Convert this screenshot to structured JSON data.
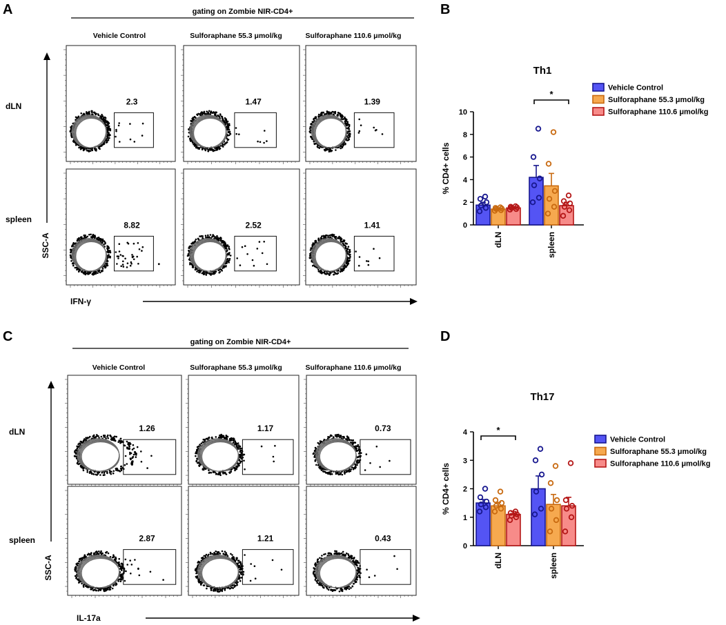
{
  "panels": {
    "A": {
      "letter": "A",
      "gating_label": "gating on Zombie NIR-CD4+",
      "columns": [
        "Vehicle Control",
        "Sulforaphane 55.3 μmol/kg",
        "Sulforaphane 110.6 μmol/kg"
      ],
      "rows": [
        "dLN",
        "spleen"
      ],
      "y_axis_label": "SSC-A",
      "x_axis_label": "IFN-γ",
      "gate_values": [
        [
          "2.3",
          "1.47",
          "1.39"
        ],
        [
          "8.82",
          "2.52",
          "1.41"
        ]
      ]
    },
    "C": {
      "letter": "C",
      "gating_label": "gating on Zombie NIR-CD4+",
      "columns": [
        "Vehicle Control",
        "Sulforaphane 55.3 μmol/kg",
        "Sulforaphane 110.6 μmol/kg"
      ],
      "rows": [
        "dLN",
        "spleen"
      ],
      "y_axis_label": "SSC-A",
      "x_axis_label": "IL-17a",
      "gate_values": [
        [
          "1.26",
          "1.17",
          "0.73"
        ],
        [
          "2.87",
          "1.21",
          "0.43"
        ]
      ]
    },
    "B": {
      "letter": "B"
    },
    "D": {
      "letter": "D"
    }
  },
  "colors": {
    "series_fill": [
      "#5454f4",
      "#f6a94f",
      "#f78b89"
    ],
    "series_stroke": [
      "#17178f",
      "#c8690f",
      "#b41616"
    ],
    "axis": "#000000",
    "contour": "#6b6b6b"
  },
  "chart_data": [
    {
      "panel": "B",
      "type": "bar",
      "title": "Th1",
      "ylabel": "% CD4+ cells",
      "xlabel": "",
      "ylim": [
        0,
        10
      ],
      "yticks": [
        "0",
        "2",
        "4",
        "6",
        "8",
        "10"
      ],
      "categories": [
        "dLN",
        "spleen"
      ],
      "legend_position": "top-right",
      "series": [
        {
          "name": "Vehicle Control",
          "values": [
            1.75,
            4.2
          ],
          "errors": [
            0.25,
            1.05
          ],
          "points": [
            [
              1.2,
              1.5,
              1.7,
              2.0,
              2.3,
              2.5
            ],
            [
              2.0,
              2.4,
              3.5,
              4.1,
              6.0,
              8.5
            ]
          ]
        },
        {
          "name": "Sulforaphane 55.3 μmol/kg",
          "values": [
            1.4,
            3.45
          ],
          "errors": [
            0.1,
            1.1
          ],
          "points": [
            [
              1.25,
              1.3,
              1.4,
              1.45,
              1.5,
              1.55
            ],
            [
              1.0,
              1.6,
              2.3,
              3.0,
              5.4,
              8.2
            ]
          ]
        },
        {
          "name": "Sulforaphane 110.6 μmol/kg",
          "values": [
            1.5,
            1.7
          ],
          "errors": [
            0.1,
            0.3
          ],
          "points": [
            [
              1.35,
              1.4,
              1.5,
              1.55,
              1.6,
              1.65
            ],
            [
              0.8,
              1.3,
              1.6,
              1.9,
              2.1,
              2.6
            ]
          ]
        }
      ],
      "significance": [
        {
          "category": "spleen",
          "from_series": 0,
          "to_series": 2,
          "label": "*"
        }
      ]
    },
    {
      "panel": "D",
      "type": "bar",
      "title": "Th17",
      "ylabel": "% CD4+ cells",
      "xlabel": "",
      "ylim": [
        0,
        4
      ],
      "yticks": [
        "0",
        "1",
        "2",
        "3",
        "4"
      ],
      "categories": [
        "dLN",
        "spleen"
      ],
      "legend_position": "right",
      "series": [
        {
          "name": "Vehicle Control",
          "values": [
            1.5,
            2.0
          ],
          "errors": [
            0.12,
            0.45
          ],
          "points": [
            [
              1.2,
              1.35,
              1.45,
              1.55,
              1.7,
              2.0
            ],
            [
              1.1,
              1.3,
              1.9,
              2.5,
              3.0,
              3.4
            ]
          ]
        },
        {
          "name": "Sulforaphane 55.3 μmol/kg",
          "values": [
            1.4,
            1.45
          ],
          "errors": [
            0.12,
            0.35
          ],
          "points": [
            [
              1.2,
              1.3,
              1.4,
              1.5,
              1.6,
              1.9
            ],
            [
              0.5,
              0.9,
              1.3,
              1.6,
              2.2,
              2.8
            ]
          ]
        },
        {
          "name": "Sulforaphane 110.6 μmol/kg",
          "values": [
            1.1,
            1.4
          ],
          "errors": [
            0.1,
            0.3
          ],
          "points": [
            [
              0.9,
              1.0,
              1.05,
              1.1,
              1.15,
              1.2
            ],
            [
              0.5,
              1.0,
              1.3,
              1.4,
              1.6,
              2.9
            ]
          ]
        }
      ],
      "significance": [
        {
          "category": "dLN",
          "from_series": 0,
          "to_series": 2,
          "label": "*"
        }
      ]
    }
  ]
}
